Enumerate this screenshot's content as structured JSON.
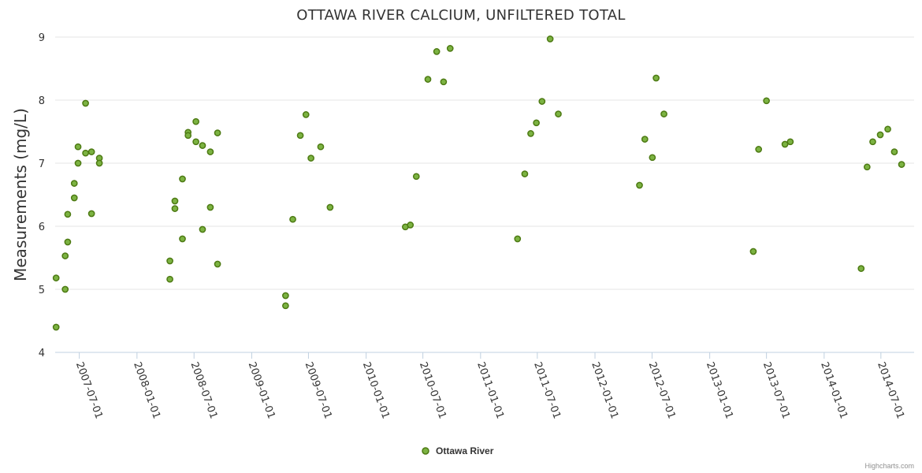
{
  "chart_data": {
    "type": "scatter",
    "title": "OTTAWA RIVER CALCIUM, UNFILTERED TOTAL",
    "xlabel": "",
    "ylabel": "Measurements (mg/L)",
    "ylim": [
      4,
      9
    ],
    "yticks": [
      4,
      5,
      6,
      7,
      8,
      9
    ],
    "xticks": [
      "2007-07-01",
      "2008-01-01",
      "2008-07-01",
      "2009-01-01",
      "2009-07-01",
      "2010-01-01",
      "2010-07-01",
      "2011-01-01",
      "2011-07-01",
      "2012-01-01",
      "2012-07-01",
      "2013-01-01",
      "2013-07-01",
      "2014-01-01",
      "2014-07-01"
    ],
    "xlim": [
      "2007-04-15",
      "2014-10-15"
    ],
    "color": "#7cb342",
    "marker_stroke": "#4d7a13",
    "legend": "bottom-center",
    "series": [
      {
        "name": "Ottawa River",
        "points": [
          [
            "2007-04-18",
            5.18
          ],
          [
            "2007-04-18",
            4.4
          ],
          [
            "2007-05-17",
            5.53
          ],
          [
            "2007-05-17",
            5.0
          ],
          [
            "2007-05-25",
            6.19
          ],
          [
            "2007-05-25",
            5.75
          ],
          [
            "2007-06-15",
            6.68
          ],
          [
            "2007-06-15",
            6.45
          ],
          [
            "2007-06-27",
            7.26
          ],
          [
            "2007-06-27",
            7.0
          ],
          [
            "2007-07-21",
            7.95
          ],
          [
            "2007-07-21",
            7.16
          ],
          [
            "2007-08-09",
            7.18
          ],
          [
            "2007-08-09",
            6.2
          ],
          [
            "2007-09-03",
            7.08
          ],
          [
            "2007-09-03",
            7.0
          ],
          [
            "2008-04-15",
            5.45
          ],
          [
            "2008-04-15",
            5.16
          ],
          [
            "2008-05-01",
            6.4
          ],
          [
            "2008-05-01",
            6.28
          ],
          [
            "2008-05-25",
            6.75
          ],
          [
            "2008-05-25",
            5.8
          ],
          [
            "2008-06-12",
            7.49
          ],
          [
            "2008-06-12",
            7.44
          ],
          [
            "2008-07-07",
            7.66
          ],
          [
            "2008-07-07",
            7.34
          ],
          [
            "2008-07-28",
            7.28
          ],
          [
            "2008-07-28",
            5.95
          ],
          [
            "2008-08-22",
            7.18
          ],
          [
            "2008-08-22",
            6.3
          ],
          [
            "2008-09-14",
            7.48
          ],
          [
            "2008-09-14",
            5.4
          ],
          [
            "2009-04-19",
            4.9
          ],
          [
            "2009-04-19",
            4.74
          ],
          [
            "2009-05-12",
            6.11
          ],
          [
            "2009-06-05",
            7.44
          ],
          [
            "2009-06-23",
            7.77
          ],
          [
            "2009-07-09",
            7.08
          ],
          [
            "2009-08-09",
            7.26
          ],
          [
            "2009-09-08",
            6.3
          ],
          [
            "2010-05-06",
            5.99
          ],
          [
            "2010-05-22",
            6.02
          ],
          [
            "2010-06-10",
            6.79
          ],
          [
            "2010-07-17",
            8.33
          ],
          [
            "2010-08-14",
            8.77
          ],
          [
            "2010-09-05",
            8.29
          ],
          [
            "2010-09-26",
            8.82
          ],
          [
            "2011-04-29",
            5.8
          ],
          [
            "2011-05-22",
            6.83
          ],
          [
            "2011-06-10",
            7.47
          ],
          [
            "2011-06-28",
            7.64
          ],
          [
            "2011-07-16",
            7.98
          ],
          [
            "2011-08-11",
            8.97
          ],
          [
            "2011-09-06",
            7.78
          ],
          [
            "2012-05-22",
            6.65
          ],
          [
            "2012-06-08",
            7.38
          ],
          [
            "2012-07-02",
            7.09
          ],
          [
            "2012-07-14",
            8.35
          ],
          [
            "2012-08-08",
            7.78
          ],
          [
            "2013-05-20",
            5.6
          ],
          [
            "2013-06-06",
            7.22
          ],
          [
            "2013-07-01",
            7.99
          ],
          [
            "2013-08-29",
            7.3
          ],
          [
            "2013-09-15",
            7.34
          ],
          [
            "2014-04-29",
            5.33
          ],
          [
            "2014-05-18",
            6.94
          ],
          [
            "2014-06-05",
            7.34
          ],
          [
            "2014-06-29",
            7.45
          ],
          [
            "2014-07-23",
            7.54
          ],
          [
            "2014-08-13",
            7.18
          ],
          [
            "2014-09-05",
            6.98
          ]
        ]
      }
    ]
  },
  "credits": "Highcharts.com"
}
